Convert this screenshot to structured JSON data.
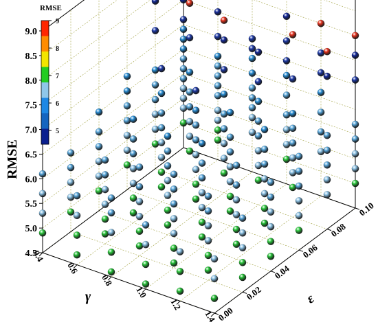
{
  "chart_data": {
    "type": "scatter",
    "dimensions": "3d",
    "zlabel": "RMSE",
    "xlabel": "γ",
    "ylabel": "ε",
    "xlim": [
      0.4,
      1.4
    ],
    "ylim": [
      0.0,
      0.1
    ],
    "zlim": [
      4.5,
      9.0
    ],
    "x_ticks": [
      "0.4",
      "0.6",
      "0.8",
      "1.0",
      "1.2",
      "1.4"
    ],
    "y_ticks": [
      "0.00",
      "0.02",
      "0.04",
      "0.06",
      "0.08",
      "0.10"
    ],
    "z_ticks": [
      "4.5",
      "5.0",
      "5.5",
      "6.0",
      "6.5",
      "7.0",
      "7.5",
      "8.0",
      "8.5",
      "9.0"
    ],
    "grid": true,
    "colorbar": {
      "title": "RMSE",
      "ticks": [
        "5",
        "6",
        "7",
        "8",
        "9"
      ],
      "range": [
        4.5,
        9.0
      ],
      "colors": [
        "#0a1f8f",
        "#1565c0",
        "#1e88e5",
        "#8fc7ea",
        "#22cc22",
        "#f2e500",
        "#ff8c00",
        "#ff2600"
      ]
    },
    "points_note": "columns of markers at each (γ, ε) grid location, RMSE shown on the vertical axis",
    "points": [
      {
        "x": 0.4,
        "y": 0.1,
        "z": [
          5.0,
          5.3,
          5.5,
          5.7,
          5.9,
          6.1,
          6.3,
          6.5,
          6.7,
          6.9,
          7.1,
          7.5,
          8.2,
          8.9
        ]
      },
      {
        "x": 0.6,
        "y": 0.1,
        "z": [
          4.9,
          5.1,
          5.3,
          5.5,
          5.8,
          6.0,
          6.2,
          6.4,
          6.6,
          7.0,
          7.5,
          8.3,
          8.9
        ]
      },
      {
        "x": 0.8,
        "y": 0.1,
        "z": [
          5.3,
          5.6,
          5.8,
          6.0,
          6.2,
          6.5,
          6.8,
          7.0,
          7.2,
          8.1,
          8.9
        ]
      },
      {
        "x": 1.0,
        "y": 0.1,
        "z": [
          5.0,
          5.3,
          5.6,
          5.9,
          6.3,
          6.7,
          7.0,
          7.4,
          7.9,
          8.6,
          8.9
        ]
      },
      {
        "x": 1.2,
        "y": 0.1,
        "z": [
          5.4,
          5.8,
          6.2,
          6.6,
          7.0,
          7.4,
          8.0,
          8.9
        ]
      },
      {
        "x": 1.4,
        "y": 0.1,
        "z": [
          5.0,
          5.3,
          5.6,
          5.9,
          6.2,
          7.1,
          7.6,
          8.0,
          8.8
        ]
      },
      {
        "x": 0.4,
        "y": 0.08,
        "z": [
          5.0,
          5.3,
          5.6,
          5.9,
          6.2,
          6.5,
          7.3,
          7.9
        ]
      },
      {
        "x": 0.6,
        "y": 0.08,
        "z": [
          5.1,
          5.4,
          5.7,
          6.0,
          6.3,
          6.7,
          7.4,
          8.1
        ]
      },
      {
        "x": 0.8,
        "y": 0.08,
        "z": [
          4.9,
          5.2,
          5.5,
          5.8,
          6.1,
          6.5,
          7.0,
          7.6,
          8.0
        ]
      },
      {
        "x": 1.0,
        "y": 0.08,
        "z": [
          5.0,
          5.3,
          5.6,
          5.9,
          6.2,
          6.6,
          7.0,
          7.6
        ]
      },
      {
        "x": 1.2,
        "y": 0.08,
        "z": [
          5.1,
          5.4,
          5.7,
          6.0,
          6.3,
          6.6,
          7.3,
          8.2
        ]
      },
      {
        "x": 1.4,
        "y": 0.08,
        "z": [
          5.2,
          5.5,
          5.8,
          6.1,
          6.4,
          7.6,
          8.1
        ]
      },
      {
        "x": 0.4,
        "y": 0.06,
        "z": [
          5.0,
          5.3,
          5.6,
          5.9,
          6.2,
          6.5,
          6.8
        ]
      },
      {
        "x": 0.6,
        "y": 0.06,
        "z": [
          4.8,
          5.1,
          5.4,
          5.7,
          6.0,
          6.3,
          6.7,
          7.2
        ]
      },
      {
        "x": 0.8,
        "y": 0.06,
        "z": [
          4.8,
          5.1,
          5.4,
          5.7,
          6.0,
          6.3,
          6.6,
          7.0
        ]
      },
      {
        "x": 1.0,
        "y": 0.06,
        "z": [
          4.8,
          5.1,
          5.4,
          5.7,
          6.0,
          6.3,
          6.8
        ]
      },
      {
        "x": 1.2,
        "y": 0.06,
        "z": [
          4.8,
          5.1,
          5.4,
          5.7,
          6.0,
          6.3,
          6.7
        ]
      },
      {
        "x": 1.4,
        "y": 0.06,
        "z": [
          4.9,
          5.2,
          5.5,
          5.8,
          6.1,
          6.4
        ]
      },
      {
        "x": 0.4,
        "y": 0.04,
        "z": [
          4.9,
          5.2,
          5.5,
          5.8,
          6.1,
          6.5
        ]
      },
      {
        "x": 0.6,
        "y": 0.04,
        "z": [
          4.7,
          5.0,
          5.3,
          5.6,
          5.9,
          6.2,
          6.6
        ]
      },
      {
        "x": 0.8,
        "y": 0.04,
        "z": [
          4.7,
          5.0,
          5.3,
          5.6,
          5.9,
          6.2,
          6.5
        ]
      },
      {
        "x": 1.0,
        "y": 0.04,
        "z": [
          4.7,
          5.0,
          5.3,
          5.6,
          5.9,
          6.2,
          6.6
        ]
      },
      {
        "x": 1.2,
        "y": 0.04,
        "z": [
          4.8,
          5.1,
          5.4,
          5.7,
          6.0,
          6.4
        ]
      },
      {
        "x": 1.4,
        "y": 0.04,
        "z": [
          4.8,
          5.1,
          5.4,
          5.7,
          6.0,
          6.3
        ]
      },
      {
        "x": 0.4,
        "y": 0.02,
        "z": [
          4.9,
          5.2,
          5.5,
          5.8,
          6.1
        ]
      },
      {
        "x": 0.6,
        "y": 0.02,
        "z": [
          4.7,
          5.0,
          5.3,
          5.6,
          5.9,
          6.2
        ]
      },
      {
        "x": 0.8,
        "y": 0.02,
        "z": [
          4.7,
          5.0,
          5.3,
          5.6,
          5.9,
          6.3
        ]
      },
      {
        "x": 1.0,
        "y": 0.02,
        "z": [
          4.6,
          4.9,
          5.2,
          5.5,
          5.8,
          6.1,
          6.4
        ]
      },
      {
        "x": 1.2,
        "y": 0.02,
        "z": [
          4.7,
          5.0,
          5.3,
          5.6,
          5.9,
          6.2
        ]
      },
      {
        "x": 1.4,
        "y": 0.02,
        "z": [
          4.8,
          5.1,
          5.4,
          5.7,
          6.0
        ]
      },
      {
        "x": 0.4,
        "y": 0.0,
        "z": [
          4.9,
          5.3,
          5.7,
          6.1
        ]
      },
      {
        "x": 0.6,
        "y": 0.0,
        "z": [
          4.7,
          5.1,
          5.5,
          5.9
        ]
      },
      {
        "x": 0.8,
        "y": 0.0,
        "z": [
          4.6,
          5.0,
          5.4,
          5.8,
          6.1
        ]
      },
      {
        "x": 1.0,
        "y": 0.0,
        "z": [
          4.6,
          5.0,
          5.4,
          5.8
        ]
      },
      {
        "x": 1.2,
        "y": 0.0,
        "z": [
          4.7,
          5.1,
          5.5
        ]
      },
      {
        "x": 1.4,
        "y": 0.0,
        "z": [
          4.8,
          5.2,
          5.6
        ]
      }
    ]
  }
}
